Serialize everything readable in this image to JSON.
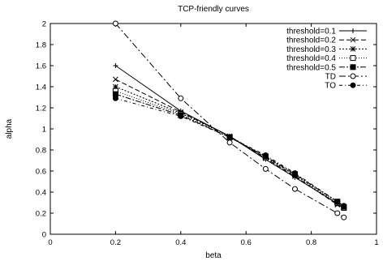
{
  "chart_data": {
    "type": "line",
    "title": "TCP-friendly curves",
    "xlabel": "beta",
    "ylabel": "alpha",
    "xlim": [
      0,
      1
    ],
    "ylim": [
      0,
      2
    ],
    "xticks": [
      0,
      0.2,
      0.4,
      0.6,
      0.8,
      1
    ],
    "xtick_labels": [
      "0",
      "0.2",
      "0.4",
      "0.6",
      "0.8",
      "1"
    ],
    "yticks": [
      0,
      0.2,
      0.4,
      0.6,
      0.8,
      1,
      1.2,
      1.4,
      1.6,
      1.8,
      2
    ],
    "ytick_labels": [
      "0",
      "0.2",
      "0.4",
      "0.6",
      "0.8",
      "1",
      "1.2",
      "1.4",
      "1.6",
      "1.8",
      "2"
    ],
    "grid": false,
    "legend_position": "top-right",
    "series": [
      {
        "name": "threshold=0.1",
        "marker": "plus",
        "dash": "",
        "x": [
          0.2,
          0.4,
          0.55,
          0.66,
          0.75,
          0.88,
          0.9
        ],
        "y": [
          1.6,
          1.17,
          0.93,
          0.71,
          0.54,
          0.29,
          0.26
        ]
      },
      {
        "name": "threshold=0.2",
        "marker": "cross",
        "dash": "6,3",
        "x": [
          0.2,
          0.4,
          0.55,
          0.66,
          0.75,
          0.88,
          0.9
        ],
        "y": [
          1.47,
          1.16,
          0.93,
          0.72,
          0.55,
          0.28,
          0.25
        ]
      },
      {
        "name": "threshold=0.3",
        "marker": "star",
        "dash": "2,2",
        "x": [
          0.2,
          0.4,
          0.55,
          0.66,
          0.75,
          0.88,
          0.9
        ],
        "y": [
          1.4,
          1.15,
          0.93,
          0.73,
          0.56,
          0.29,
          0.25
        ]
      },
      {
        "name": "threshold=0.4",
        "marker": "square-open",
        "dash": "1,2",
        "x": [
          0.2,
          0.4,
          0.55,
          0.66,
          0.75,
          0.88,
          0.9
        ],
        "y": [
          1.36,
          1.14,
          0.92,
          0.73,
          0.57,
          0.3,
          0.25
        ]
      },
      {
        "name": "threshold=0.5",
        "marker": "square-filled",
        "dash": "7,2,2,2",
        "x": [
          0.2,
          0.4,
          0.55,
          0.66,
          0.75,
          0.88,
          0.9
        ],
        "y": [
          1.33,
          1.13,
          0.92,
          0.74,
          0.57,
          0.31,
          0.26
        ]
      },
      {
        "name": "TD",
        "marker": "circle-open",
        "dash": "8,3,2,3",
        "x": [
          0.2,
          0.4,
          0.55,
          0.66,
          0.75,
          0.88,
          0.9
        ],
        "y": [
          2.0,
          1.29,
          0.87,
          0.62,
          0.43,
          0.2,
          0.16
        ]
      },
      {
        "name": "TO",
        "marker": "circle-filled",
        "dash": "4,3,1,3",
        "x": [
          0.2,
          0.4,
          0.55,
          0.66,
          0.75,
          0.88,
          0.9
        ],
        "y": [
          1.29,
          1.12,
          0.92,
          0.75,
          0.58,
          0.31,
          0.27
        ]
      }
    ]
  }
}
